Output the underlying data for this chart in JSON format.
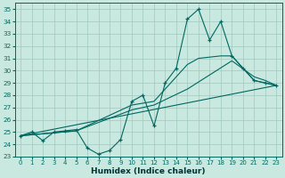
{
  "xlabel": "Humidex (Indice chaleur)",
  "bg_color": "#c8e8e0",
  "grid_color": "#a0c8c0",
  "line_color": "#006860",
  "xlim": [
    -0.5,
    23.5
  ],
  "ylim": [
    23,
    35.5
  ],
  "xticks": [
    0,
    1,
    2,
    3,
    4,
    5,
    6,
    7,
    8,
    9,
    10,
    11,
    12,
    13,
    14,
    15,
    16,
    17,
    18,
    19,
    20,
    21,
    22,
    23
  ],
  "yticks": [
    23,
    24,
    25,
    26,
    27,
    28,
    29,
    30,
    31,
    32,
    33,
    34,
    35
  ],
  "series": [
    {
      "x": [
        0,
        1,
        2,
        3,
        4,
        5,
        6,
        7,
        8,
        9,
        10,
        11,
        12,
        13,
        14,
        15,
        16,
        17,
        18,
        19,
        20,
        21,
        22,
        23
      ],
      "y": [
        24.7,
        25.0,
        24.3,
        25.0,
        25.1,
        25.2,
        23.7,
        23.2,
        23.5,
        24.4,
        27.5,
        28.0,
        25.5,
        29.0,
        30.2,
        34.2,
        35.0,
        32.5,
        34.0,
        31.2,
        30.2,
        29.2,
        29.0,
        28.8
      ]
    },
    {
      "x": [
        0,
        23
      ],
      "y": [
        24.7,
        28.8
      ]
    },
    {
      "x": [
        0,
        5,
        10,
        12,
        15,
        19,
        21,
        22,
        23
      ],
      "y": [
        24.7,
        25.1,
        26.8,
        27.2,
        28.5,
        30.8,
        29.5,
        29.2,
        28.8
      ]
    },
    {
      "x": [
        0,
        5,
        10,
        12,
        15,
        16,
        18,
        19,
        21,
        22,
        23
      ],
      "y": [
        24.7,
        25.1,
        27.2,
        27.5,
        30.5,
        31.0,
        31.2,
        31.2,
        29.2,
        29.0,
        28.8
      ]
    }
  ]
}
